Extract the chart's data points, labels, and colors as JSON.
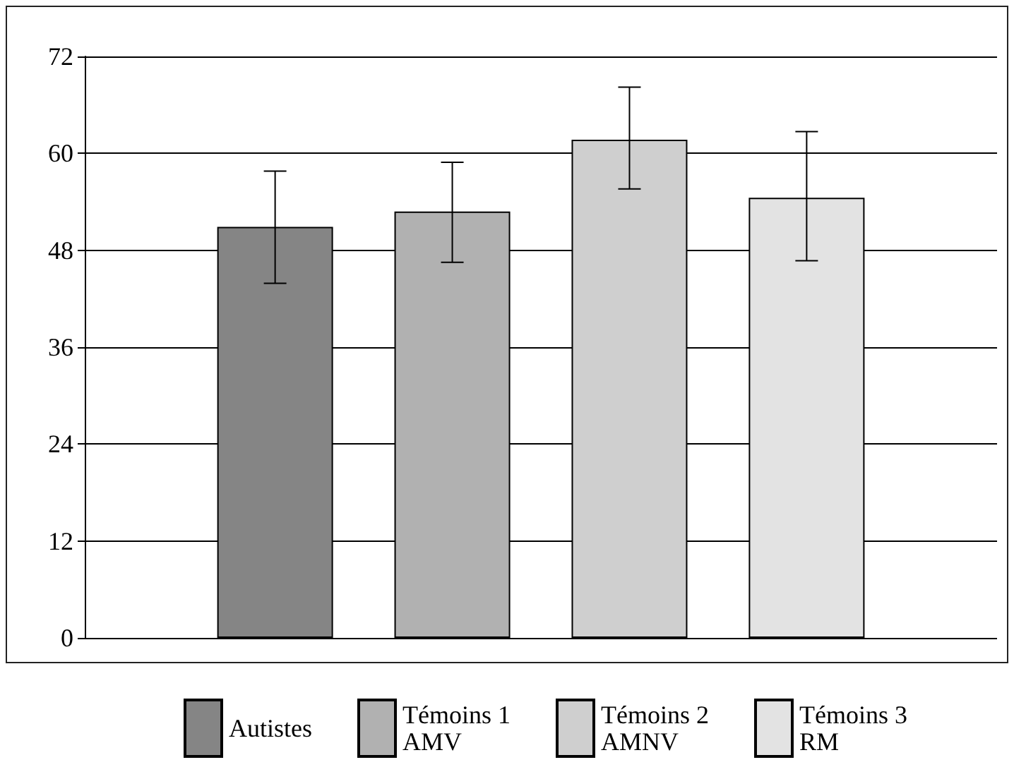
{
  "chart_data": {
    "type": "bar",
    "categories": [
      null
    ],
    "series": [
      {
        "name": "Autistes",
        "color": "#858585",
        "values": [
          50.9
        ],
        "errors": [
          [
            43.9,
            57.8
          ]
        ]
      },
      {
        "name": "Témoins 1\nAMV",
        "color": "#b1b1b1",
        "values": [
          52.8
        ],
        "errors": [
          [
            46.5,
            58.9
          ]
        ]
      },
      {
        "name": "Témoins 2\nAMNV",
        "color": "#cfcfcf",
        "values": [
          61.7
        ],
        "errors": [
          [
            55.6,
            68.2
          ]
        ]
      },
      {
        "name": "Témoins 3\nRM",
        "color": "#e3e3e3",
        "values": [
          54.5
        ],
        "errors": [
          [
            46.7,
            62.7
          ]
        ]
      }
    ],
    "ylim": [
      0,
      72
    ],
    "yticks": [
      0,
      12,
      24,
      36,
      48,
      60,
      72
    ],
    "grid": "y",
    "legend": "bottom",
    "tick_labels": "y"
  }
}
